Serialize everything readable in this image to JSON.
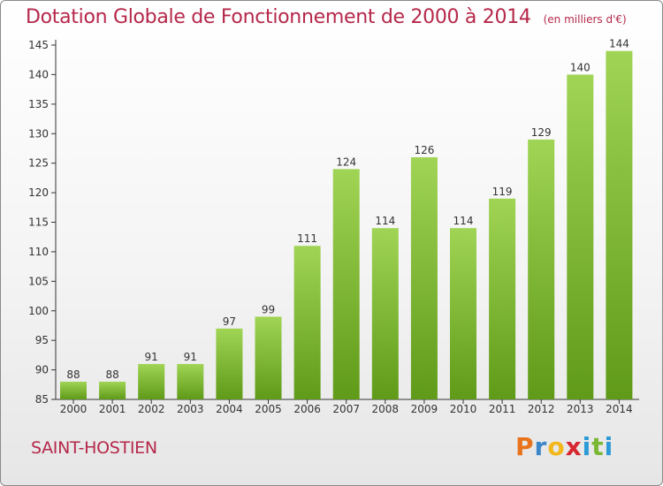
{
  "header": {
    "title": "Dotation Globale de Fonctionnement de 2000 à 2014",
    "unit": "(en milliers d'€)"
  },
  "footer": {
    "commune": "SAINT-HOSTIEN",
    "brand_letters": [
      "P",
      "r",
      "o",
      "x",
      "i",
      "t",
      "i"
    ],
    "brand_colors": [
      "#e8731c",
      "#3a86c8",
      "#f2b81b",
      "#d6262f",
      "#2c9ad6",
      "#7ab733",
      "#2c9ad6"
    ]
  },
  "colors": {
    "bar_light": "#a0d455",
    "bar_dark": "#5f9a18",
    "accent": "#b5284a",
    "axis": "#333333"
  },
  "chart_data": {
    "type": "bar",
    "categories": [
      "2000",
      "2001",
      "2002",
      "2003",
      "2004",
      "2005",
      "2006",
      "2007",
      "2008",
      "2009",
      "2010",
      "2011",
      "2012",
      "2013",
      "2014"
    ],
    "values": [
      88,
      88,
      91,
      91,
      97,
      99,
      111,
      124,
      114,
      126,
      114,
      119,
      129,
      140,
      144
    ],
    "ylim": [
      85,
      145
    ],
    "yticks": [
      85,
      90,
      95,
      100,
      105,
      110,
      115,
      120,
      125,
      130,
      135,
      140,
      145
    ],
    "grid": false
  }
}
